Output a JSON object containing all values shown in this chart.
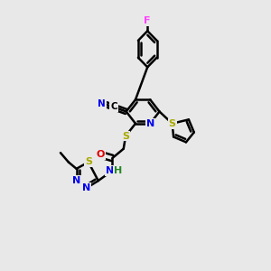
{
  "bg_color": "#e8e8e8",
  "bond_color": "#000000",
  "bond_width": 1.8,
  "figsize": [
    3.0,
    3.0
  ],
  "dpi": 100,
  "colors": {
    "F": "#ff44ff",
    "N": "#0000ee",
    "S": "#aaaa00",
    "O": "#dd0000",
    "C": "#000000",
    "H": "#228822"
  }
}
